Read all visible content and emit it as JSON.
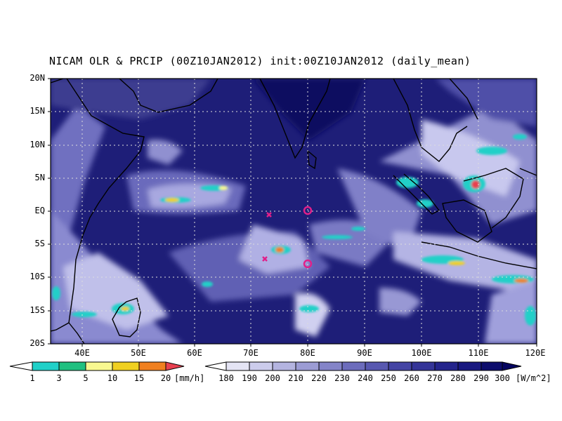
{
  "title": "NICAM OLR & PRCIP (00Z10JAN2012) init:00Z10JAN2012 (daily_mean)",
  "lat_labels": [
    "20N",
    "15N",
    "10N",
    "5N",
    "EQ",
    "5S",
    "10S",
    "15S",
    "20S"
  ],
  "lon_labels": [
    "40E",
    "50E",
    "60E",
    "70E",
    "80E",
    "90E",
    "100E",
    "110E",
    "120E"
  ],
  "precip_colorbar": {
    "unit": "[mm/h]",
    "labels": [
      "1",
      "3",
      "5",
      "10",
      "15",
      "20"
    ],
    "colors": [
      "#ffffff",
      "#20d0c8",
      "#20c080",
      "#f8f890",
      "#f0d020",
      "#f08020",
      "#e84050"
    ]
  },
  "olr_colorbar": {
    "unit": "[W/m^2]",
    "labels": [
      "180",
      "190",
      "200",
      "210",
      "220",
      "230",
      "240",
      "250",
      "260",
      "270",
      "280",
      "290",
      "300"
    ],
    "colors": [
      "#ffffff",
      "#e4e4f4",
      "#ccccec",
      "#b4b4e0",
      "#9c9cd4",
      "#8484c8",
      "#6c6cbc",
      "#5858b0",
      "#4444a4",
      "#343498",
      "#24248c",
      "#181880",
      "#0c0c6c",
      "#040460"
    ]
  },
  "map": {
    "ocean_color": "#1e1e78",
    "markers": [
      {
        "type": "x",
        "lon": 73.2,
        "lat": -0.6
      },
      {
        "type": "o",
        "lon": 80.0,
        "lat": 0.0
      },
      {
        "type": "x",
        "lon": 72.5,
        "lat": -7.3
      },
      {
        "type": "o",
        "lon": 80.0,
        "lat": -8.0
      }
    ]
  }
}
